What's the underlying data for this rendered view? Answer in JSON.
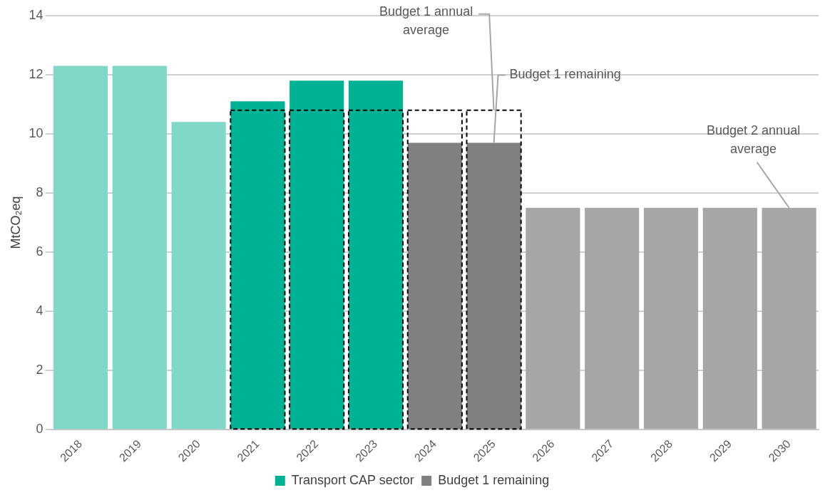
{
  "chart_data": {
    "type": "bar",
    "ylabel": "MtCO₂eq",
    "categories": [
      "2018",
      "2019",
      "2020",
      "2021",
      "2022",
      "2023",
      "2024",
      "2025",
      "2026",
      "2027",
      "2028",
      "2029",
      "2030"
    ],
    "series": [
      {
        "color": "#80d8c8",
        "values": [
          12.3,
          12.3,
          10.4,
          null,
          null,
          null,
          null,
          null,
          null,
          null,
          null,
          null,
          null
        ]
      },
      {
        "name": "Transport CAP sector",
        "color": "#00b294",
        "values": [
          null,
          null,
          null,
          11.1,
          11.8,
          11.8,
          null,
          null,
          null,
          null,
          null,
          null,
          null
        ]
      },
      {
        "name": "Budget 1 remaining",
        "color": "#808080",
        "values": [
          null,
          null,
          null,
          null,
          null,
          null,
          9.7,
          9.7,
          null,
          null,
          null,
          null,
          null
        ]
      },
      {
        "color": "#a6a6a6",
        "values": [
          null,
          null,
          null,
          null,
          null,
          null,
          null,
          null,
          7.5,
          7.5,
          7.5,
          7.5,
          7.5
        ]
      },
      {
        "color": "#000000",
        "line_style": "dashed",
        "values": [
          null,
          null,
          null,
          10.8,
          10.8,
          10.8,
          10.8,
          10.8,
          null,
          null,
          null,
          null,
          null
        ]
      }
    ],
    "ylim": [
      0,
      14
    ],
    "yticks": [
      0,
      2,
      4,
      6,
      8,
      10,
      12,
      14
    ],
    "grid": "y",
    "legend": "bottom",
    "annotations": [
      {
        "text": "Budget 1 annual average",
        "x": "2025",
        "y": 10.8
      },
      {
        "text": "Budget 1 remaining",
        "x": "2025",
        "y": 9.7
      },
      {
        "text": "Budget 2 annual average",
        "x": "2030",
        "y": 7.5
      }
    ]
  }
}
